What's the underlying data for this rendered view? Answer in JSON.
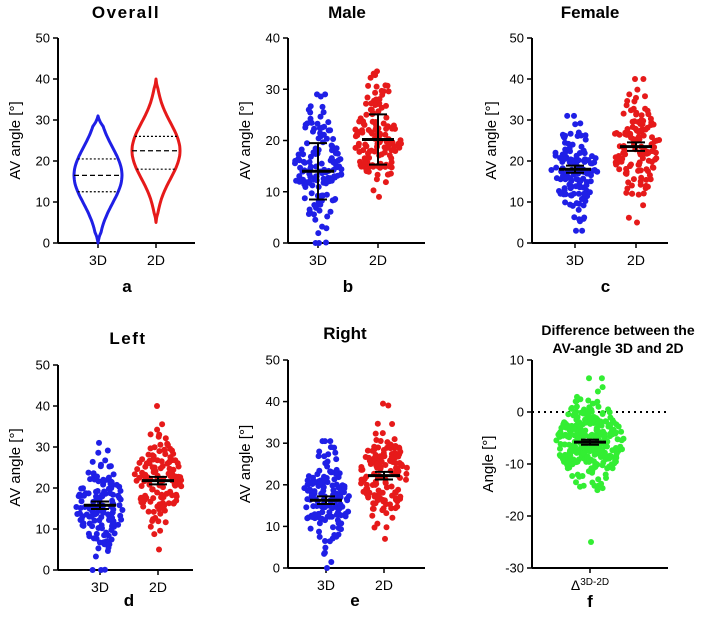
{
  "figure": {
    "colors": {
      "d3": "#1f1fe6",
      "d2": "#e61a1a",
      "diff": "#33ee33",
      "stat": "#000000"
    }
  },
  "chart_data": [
    {
      "id": "a",
      "type": "violin",
      "title": "Overall",
      "panel_letter": "a",
      "ylabel": "AV angle [°]",
      "ylim": [
        0,
        50
      ],
      "yticks": [
        0,
        10,
        20,
        30,
        40,
        50
      ],
      "categories": [
        "3D",
        "2D"
      ],
      "series": [
        {
          "name": "3D",
          "color": "#1f1fe6",
          "min": 0,
          "max": 31,
          "q1": 12.5,
          "median": 16.5,
          "q3": 20.5
        },
        {
          "name": "2D",
          "color": "#e61a1a",
          "min": 5,
          "max": 40,
          "q1": 18,
          "median": 22.5,
          "q3": 26
        }
      ]
    },
    {
      "id": "b",
      "type": "scatter",
      "title": "Male",
      "panel_letter": "b",
      "ylabel": "AV angle [°]",
      "ylim": [
        0,
        40
      ],
      "yticks": [
        0,
        10,
        20,
        30,
        40
      ],
      "categories": [
        "3D",
        "2D"
      ],
      "series": [
        {
          "name": "3D",
          "color": "#1f1fe6",
          "n": 140,
          "mean": 14,
          "sd": 5.5,
          "min": 0,
          "max": 29,
          "error": "sd"
        },
        {
          "name": "2D",
          "color": "#e61a1a",
          "n": 140,
          "mean": 20.2,
          "sd": 4.9,
          "min": 9,
          "max": 33.5,
          "error": "sd"
        }
      ]
    },
    {
      "id": "c",
      "type": "scatter",
      "title": "Female",
      "panel_letter": "c",
      "ylabel": "AV angle [°]",
      "ylim": [
        0,
        50
      ],
      "yticks": [
        0,
        10,
        20,
        30,
        40,
        50
      ],
      "categories": [
        "3D",
        "2D"
      ],
      "series": [
        {
          "name": "3D",
          "color": "#1f1fe6",
          "n": 130,
          "mean": 18,
          "sd": 5,
          "min": 3,
          "max": 31,
          "error": "ci"
        },
        {
          "name": "2D",
          "color": "#e61a1a",
          "n": 130,
          "mean": 23.5,
          "sd": 6,
          "min": 5,
          "max": 40,
          "error": "ci"
        }
      ]
    },
    {
      "id": "d",
      "type": "scatter",
      "title": "Left",
      "panel_letter": "d",
      "ylabel": "AV angle [°]",
      "ylim": [
        0,
        50
      ],
      "yticks": [
        0,
        10,
        20,
        30,
        40,
        50
      ],
      "categories": [
        "3D",
        "2D"
      ],
      "series": [
        {
          "name": "3D",
          "color": "#1f1fe6",
          "n": 140,
          "mean": 15.8,
          "sd": 5.5,
          "min": 0,
          "max": 31,
          "error": "ci"
        },
        {
          "name": "2D",
          "color": "#e61a1a",
          "n": 140,
          "mean": 21.8,
          "sd": 5.5,
          "min": 5,
          "max": 40,
          "error": "ci"
        }
      ]
    },
    {
      "id": "e",
      "type": "scatter",
      "title": "Right",
      "panel_letter": "e",
      "ylabel": "AV angle [°]",
      "ylim": [
        0,
        50
      ],
      "yticks": [
        0,
        10,
        20,
        30,
        40,
        50
      ],
      "categories": [
        "3D",
        "2D"
      ],
      "series": [
        {
          "name": "3D",
          "color": "#1f1fe6",
          "n": 140,
          "mean": 16.3,
          "sd": 5.5,
          "min": 0,
          "max": 30.5,
          "error": "ci"
        },
        {
          "name": "2D",
          "color": "#e61a1a",
          "n": 140,
          "mean": 22.2,
          "sd": 5.5,
          "min": 7,
          "max": 39.5,
          "error": "ci"
        }
      ]
    },
    {
      "id": "f",
      "type": "scatter",
      "title": "Difference between the AV-angle 3D and 2D",
      "title_lines": [
        "Difference between the",
        "AV-angle 3D and 2D"
      ],
      "panel_letter": "f",
      "ylabel": "Angle [°]",
      "ylim": [
        -30,
        10
      ],
      "yticks": [
        -30,
        -20,
        -10,
        0,
        10
      ],
      "categories": [
        "Δ3D-2D"
      ],
      "category_parts": [
        "Δ",
        "3D-2D"
      ],
      "ref_line": 0,
      "series": [
        {
          "name": "Δ3D-2D",
          "color": "#33ee33",
          "n": 280,
          "mean": -5.8,
          "sd": 4.2,
          "min": -25,
          "max": 6.5,
          "error": "ci"
        }
      ]
    }
  ]
}
